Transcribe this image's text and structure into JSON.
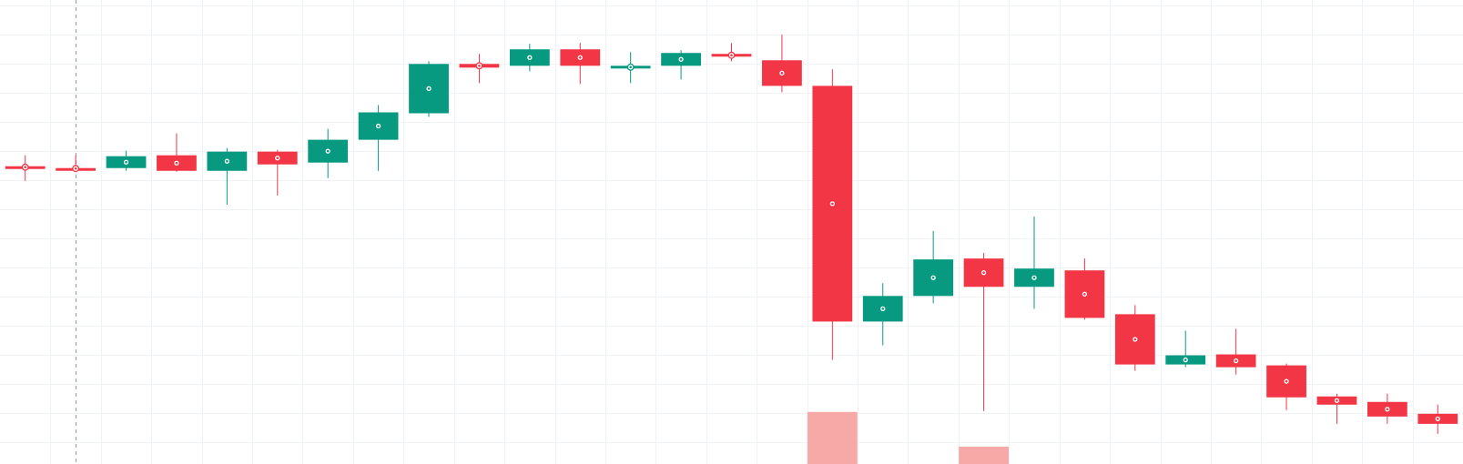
{
  "colors": {
    "background": "#ffffff",
    "grid": "#f0f3f6",
    "up": "#089981",
    "down": "#f23645",
    "volume_down": "#f7a9a7",
    "crosshair": "#9598a1",
    "marker_fill": "#ffffff"
  },
  "chart_data": {
    "type": "candlestick",
    "grid": true,
    "ylim": [
      0,
      498
    ],
    "xlim": [
      -0.5,
      28.5
    ],
    "crosshair_index": 1,
    "candles": [
      {
        "o": 316,
        "h": 328,
        "l": 300,
        "c": 314
      },
      {
        "o": 314,
        "h": 328,
        "l": 312,
        "c": 313
      },
      {
        "o": 314,
        "h": 333,
        "l": 311,
        "c": 327
      },
      {
        "o": 328,
        "h": 352,
        "l": 310,
        "c": 311
      },
      {
        "o": 311,
        "h": 336,
        "l": 274,
        "c": 332
      },
      {
        "o": 332,
        "h": 334,
        "l": 284,
        "c": 318
      },
      {
        "o": 320,
        "h": 357,
        "l": 303,
        "c": 345
      },
      {
        "o": 345,
        "h": 383,
        "l": 311,
        "c": 375
      },
      {
        "o": 374,
        "h": 431,
        "l": 370,
        "c": 428
      },
      {
        "o": 428,
        "h": 439,
        "l": 407,
        "c": 424
      },
      {
        "o": 426,
        "h": 450,
        "l": 420,
        "c": 444
      },
      {
        "o": 444,
        "h": 451,
        "l": 406,
        "c": 426
      },
      {
        "o": 423,
        "h": 441,
        "l": 407,
        "c": 426
      },
      {
        "o": 426,
        "h": 443,
        "l": 411,
        "c": 440
      },
      {
        "o": 439,
        "h": 451,
        "l": 431,
        "c": 436
      },
      {
        "o": 432,
        "h": 460,
        "l": 397,
        "c": 404
      },
      {
        "o": 404,
        "h": 422,
        "l": 104,
        "c": 146
      },
      {
        "o": 146,
        "h": 188,
        "l": 120,
        "c": 174
      },
      {
        "o": 174,
        "h": 245,
        "l": 166,
        "c": 214
      },
      {
        "o": 215,
        "h": 221,
        "l": 48,
        "c": 184
      },
      {
        "o": 184,
        "h": 261,
        "l": 160,
        "c": 204
      },
      {
        "o": 202,
        "h": 215,
        "l": 148,
        "c": 150
      },
      {
        "o": 154,
        "h": 164,
        "l": 92,
        "c": 99
      },
      {
        "o": 99,
        "h": 136,
        "l": 96,
        "c": 109
      },
      {
        "o": 110,
        "h": 138,
        "l": 88,
        "c": 96
      },
      {
        "o": 98,
        "h": 100,
        "l": 49,
        "c": 63
      },
      {
        "o": 64,
        "h": 67,
        "l": 34,
        "c": 55
      },
      {
        "o": 58,
        "h": 67,
        "l": 34,
        "c": 42
      },
      {
        "o": 45,
        "h": 55,
        "l": 23,
        "c": 34
      }
    ],
    "volume": [
      {
        "index": 16,
        "value": 47,
        "direction": "down"
      },
      {
        "index": 19,
        "value": 9,
        "direction": "down"
      }
    ]
  }
}
